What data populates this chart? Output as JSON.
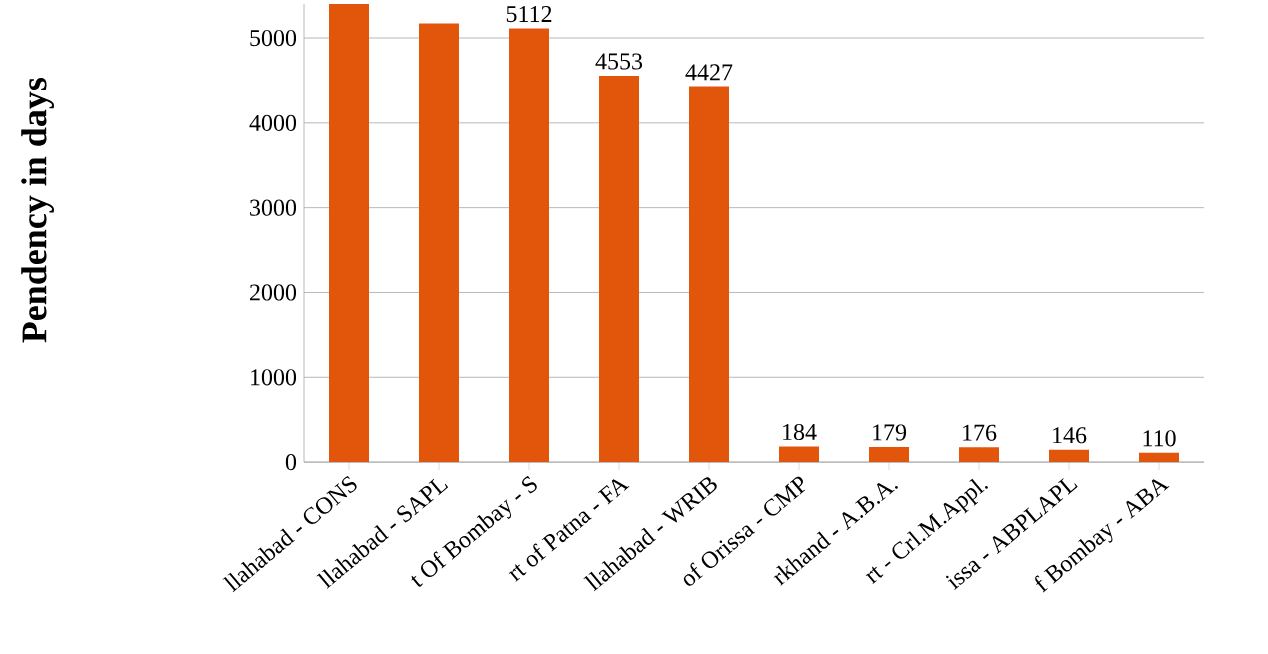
{
  "chart_data": {
    "type": "bar",
    "ylabel": "Pendency in days",
    "categories": [
      "llahabad - CONS",
      "llahabad - SAPL",
      "t Of Bombay - S",
      "rt of Patna - FA",
      "llahabad - WRIB",
      "of Orissa - CMP",
      "rkhand - A.B.A.",
      "rt - Crl.M.Appl.",
      "issa - ABPLAPL",
      "f Bombay - ABA"
    ],
    "values": [
      5400,
      5170,
      5112,
      4553,
      4427,
      184,
      179,
      176,
      146,
      110
    ],
    "value_labels": [
      null,
      null,
      "5112",
      "4553",
      "4427",
      "184",
      "179",
      "176",
      "146",
      "110"
    ],
    "color": "#e2560c",
    "ylim": [
      0,
      5400
    ],
    "yticks": [
      0,
      1000,
      2000,
      3000,
      4000,
      5000
    ],
    "grid": "y"
  }
}
